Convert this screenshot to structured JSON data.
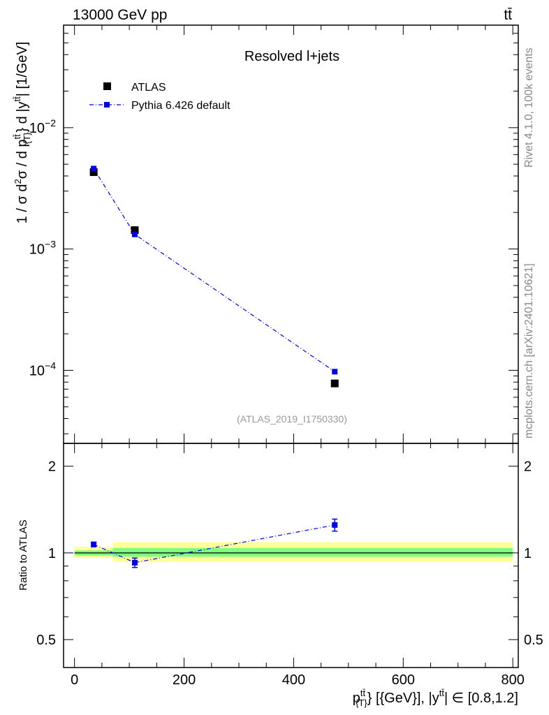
{
  "header": {
    "energy_label": "13000 GeV pp",
    "process_label": "tt̄"
  },
  "side_labels": {
    "rivet": "Rivet 4.1.0,  100k events",
    "source": "mcplots.cern.ch [arXiv:2401.10621]"
  },
  "analysis_tag": "(ATLAS_2019_I1750330)",
  "colors": {
    "data": "#000000",
    "mc": "#0000ee",
    "band_inner": "#7fff7f",
    "band_outer": "#ffff99",
    "watermark": "#999999"
  },
  "chart_data": [
    {
      "type": "scatter",
      "panel": "main",
      "title": "Resolved l+jets",
      "ylabel": "1 / σ d²σ / d p_T^{tt̄} d |y^{tt̄}| [1/GeV]",
      "yscale": "log",
      "xlim": [
        -20,
        810
      ],
      "ylim": [
        2.5e-05,
        0.07
      ],
      "yticks": [
        {
          "value": 0.01,
          "mantissa": "10",
          "exp": "−2"
        },
        {
          "value": 0.001,
          "mantissa": "10",
          "exp": "−3"
        },
        {
          "value": 0.0001,
          "mantissa": "10",
          "exp": "−4"
        }
      ],
      "legend_position": "top-left",
      "series": [
        {
          "name": "ATLAS",
          "style": "markers",
          "x": [
            35,
            110,
            475
          ],
          "y": [
            0.0043,
            0.00143,
            7.8e-05
          ],
          "yerr": [
            0.00012,
            4e-05,
            3e-06
          ]
        },
        {
          "name": "Pythia 6.426 default",
          "style": "dash-dot-line",
          "x": [
            35,
            110,
            475
          ],
          "y": [
            0.0046,
            0.00132,
            9.75e-05
          ],
          "yerr": [
            0.00013,
            4e-05,
            5e-06
          ]
        }
      ]
    },
    {
      "type": "scatter",
      "panel": "ratio",
      "ylabel": "Ratio to ATLAS",
      "xlabel": "p_T^{tt̄} [{GeV}], |y^{tt̄}| ∈ [0.8,1.2]",
      "yscale": "log",
      "xlim": [
        -20,
        810
      ],
      "ylim": [
        0.4,
        2.4
      ],
      "xticks": [
        0,
        200,
        400,
        600,
        800
      ],
      "yticks": [
        0.5,
        1,
        2
      ],
      "reference_line": 1,
      "uncertainty_bands": [
        {
          "x_range": [
            0,
            70
          ],
          "inner": [
            0.98,
            1.02
          ],
          "outer": [
            0.96,
            1.05
          ]
        },
        {
          "x_range": [
            70,
            800
          ],
          "inner": [
            0.97,
            1.04
          ],
          "outer": [
            0.93,
            1.09
          ]
        }
      ],
      "series": [
        {
          "name": "Pythia 6.426 default",
          "x": [
            35,
            110,
            475
          ],
          "y": [
            1.07,
            0.925,
            1.25
          ],
          "yerr": [
            0.02,
            0.035,
            0.06
          ]
        }
      ]
    }
  ]
}
